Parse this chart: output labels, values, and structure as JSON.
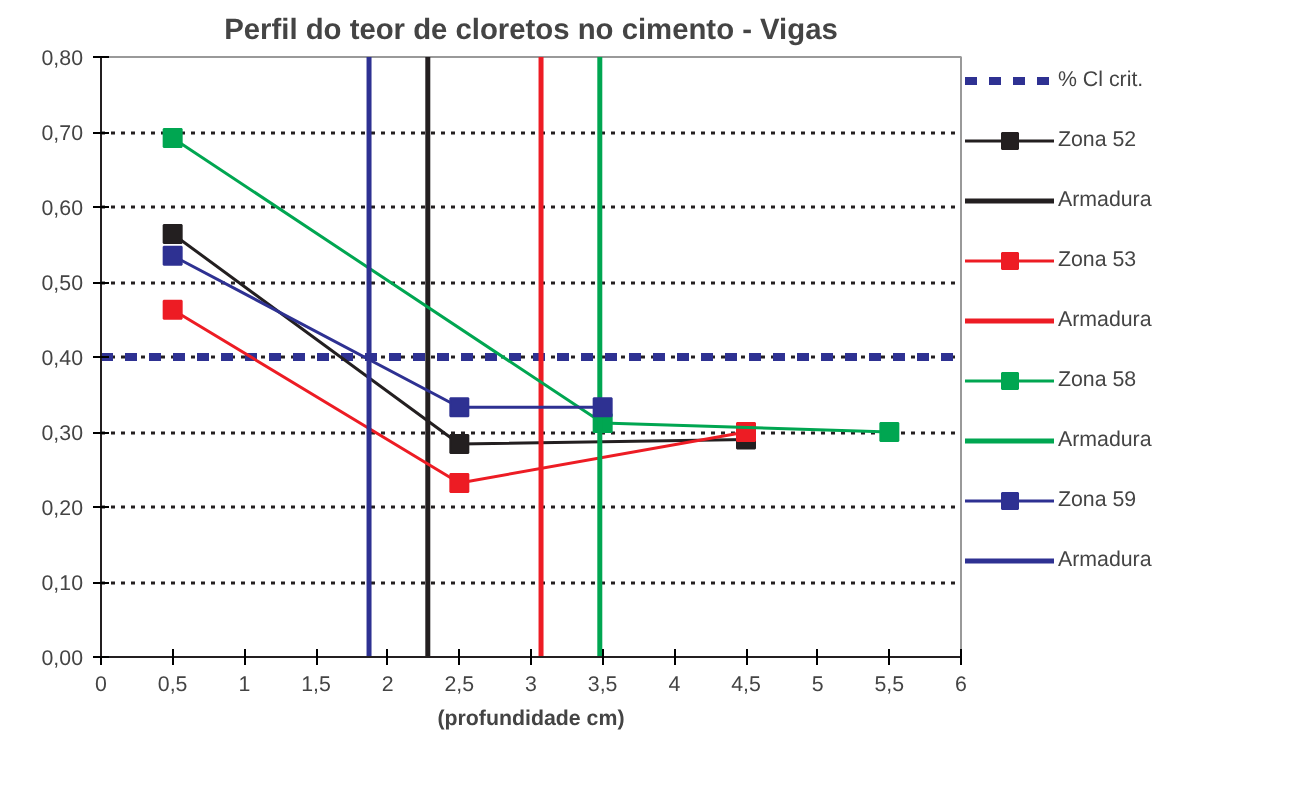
{
  "chart_data": {
    "type": "line",
    "title": "Perfil do teor de cloretos no cimento - Vigas",
    "xlabel": "(profundidade cm)",
    "xlim": [
      0,
      6
    ],
    "ylim": [
      0,
      0.8
    ],
    "xticks": [
      0,
      {
        "value": 0.5,
        "label": "0,5"
      },
      1,
      {
        "value": 1.5,
        "label": "1,5"
      },
      2,
      {
        "value": 2.5,
        "label": "2,5"
      },
      3,
      {
        "value": 3.5,
        "label": "3,5"
      },
      4,
      {
        "value": 4.5,
        "label": "4,5"
      },
      5,
      {
        "value": 5.5,
        "label": "5,5"
      },
      6
    ],
    "yticks": [
      {
        "value": 0,
        "label": "0,00"
      },
      {
        "value": 0.1,
        "label": "0,10"
      },
      {
        "value": 0.2,
        "label": "0,20"
      },
      {
        "value": 0.3,
        "label": "0,30"
      },
      {
        "value": 0.4,
        "label": "0,40"
      },
      {
        "value": 0.5,
        "label": "0,50"
      },
      {
        "value": 0.6,
        "label": "0,60"
      },
      {
        "value": 0.7,
        "label": "0,70"
      },
      {
        "value": 0.8,
        "label": "0,80"
      }
    ],
    "grid": "y",
    "legend": "right",
    "marker": "square",
    "line_style": "solid",
    "series": [
      {
        "name": "% Cl crit.",
        "color": "#2e3192",
        "x": [
          0,
          6
        ],
        "values": [
          0.4,
          0.4
        ],
        "marker": "none",
        "line_style": "dashed"
      },
      {
        "name": "Zona 52",
        "color": "#231f20",
        "x": [
          0.5,
          2.5,
          4.5
        ],
        "values": [
          0.564,
          0.284,
          0.29
        ]
      },
      {
        "name": "Armadura",
        "color": "#231f20",
        "x": [
          2.28,
          2.28
        ],
        "values": [
          0,
          0.8
        ],
        "marker": "none"
      },
      {
        "name": "Zona 53",
        "color": "#ed1c24",
        "x": [
          0.5,
          2.5,
          4.5
        ],
        "values": [
          0.463,
          0.232,
          0.3
        ]
      },
      {
        "name": "Armadura",
        "color": "#ed1c24",
        "x": [
          3.07,
          3.07
        ],
        "values": [
          0,
          0.8
        ],
        "marker": "none"
      },
      {
        "name": "Zona 58",
        "color": "#00a651",
        "x": [
          0.5,
          3.5,
          5.5
        ],
        "values": [
          0.692,
          0.312,
          0.3
        ]
      },
      {
        "name": "Armadura",
        "color": "#00a651",
        "x": [
          3.48,
          3.48
        ],
        "values": [
          0,
          0.8
        ],
        "marker": "none"
      },
      {
        "name": "Zona 59",
        "color": "#2e3192",
        "x": [
          0.5,
          2.5,
          3.5
        ],
        "values": [
          0.535,
          0.333,
          0.333
        ]
      },
      {
        "name": "Armadura",
        "color": "#2e3192",
        "x": [
          1.87,
          1.87
        ],
        "values": [
          0,
          0.8
        ],
        "marker": "none"
      }
    ]
  }
}
